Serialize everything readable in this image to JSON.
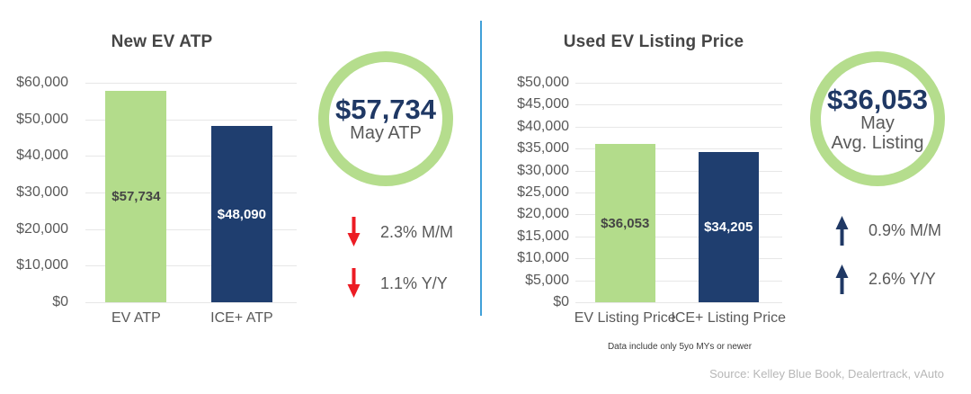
{
  "page": {
    "footnote": "Data include only 5yo MYs or newer",
    "source": "Source: Kelley Blue Book, Dealertrack, vAuto"
  },
  "colors": {
    "bar_green": "#b3dc8b",
    "bar_navy": "#1f3e6f",
    "circle_ring_green": "#b5dd8d",
    "stat_value_navy": "#1f3864",
    "arrow_red": "#ec1c24",
    "arrow_navy": "#1f3864",
    "divider_blue": "#41a0d8",
    "gridline": "#e7e7e7",
    "axis_text": "#595959",
    "title_text": "#454545",
    "source_text": "#b7b7b7"
  },
  "chart_data": [
    {
      "type": "bar",
      "title": "New EV ATP",
      "categories": [
        "EV ATP",
        "ICE+ ATP"
      ],
      "values": [
        57734,
        48090
      ],
      "value_labels": [
        "$57,734",
        "$48,090"
      ],
      "value_label_colors": [
        "#454545",
        "#ffffff"
      ],
      "bar_colors": [
        "#b3dc8b",
        "#1f3e6f"
      ],
      "ylim": [
        0,
        60000
      ],
      "ytick_step": 10000,
      "yticks": [
        "$60,000",
        "$50,000",
        "$40,000",
        "$30,000",
        "$20,000",
        "$10,000",
        "$0"
      ],
      "grid": true,
      "legend": "none"
    },
    {
      "type": "bar",
      "title": "Used EV Listing Price",
      "categories": [
        "EV Listing Price",
        "ICE+ Listing Price"
      ],
      "values": [
        36053,
        34205
      ],
      "value_labels": [
        "$36,053",
        "$34,205"
      ],
      "value_label_colors": [
        "#454545",
        "#ffffff"
      ],
      "bar_colors": [
        "#b3dc8b",
        "#1f3e6f"
      ],
      "ylim": [
        0,
        50000
      ],
      "ytick_step": 5000,
      "yticks": [
        "$50,000",
        "$45,000",
        "$40,000",
        "$35,000",
        "$30,000",
        "$25,000",
        "$20,000",
        "$15,000",
        "$10,000",
        "$5,000",
        "$0"
      ],
      "grid": true,
      "legend": "none"
    }
  ],
  "stats": [
    {
      "badge_value": "$57,734",
      "badge_label_lines": [
        "May ATP"
      ],
      "changes": [
        {
          "direction": "down",
          "color": "#ec1c24",
          "label": "2.3% M/M"
        },
        {
          "direction": "down",
          "color": "#ec1c24",
          "label": "1.1% Y/Y"
        }
      ]
    },
    {
      "badge_value": "$36,053",
      "badge_label_lines": [
        "May",
        "Avg. Listing"
      ],
      "changes": [
        {
          "direction": "up",
          "color": "#1f3864",
          "label": "0.9% M/M"
        },
        {
          "direction": "up",
          "color": "#1f3864",
          "label": "2.6% Y/Y"
        }
      ]
    }
  ]
}
